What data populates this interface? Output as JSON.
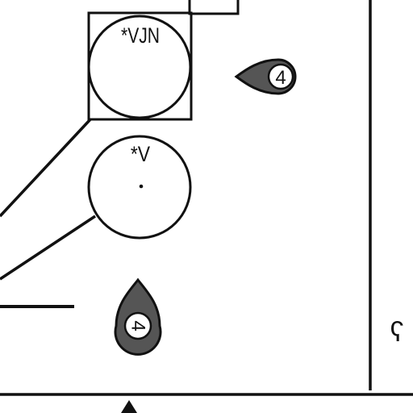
{
  "diagram": {
    "ink_color": "#111111",
    "tag_fill": "#555555",
    "tag_inner_fill": "#ffffff",
    "fixtures": [
      {
        "label": "*VJN",
        "boxed": true
      },
      {
        "label": "*V",
        "boxed": false
      }
    ],
    "tags": [
      {
        "number": "4",
        "pointer": "left"
      },
      {
        "number": "4",
        "pointer": "up"
      }
    ],
    "edge_mark": "ʕ"
  }
}
